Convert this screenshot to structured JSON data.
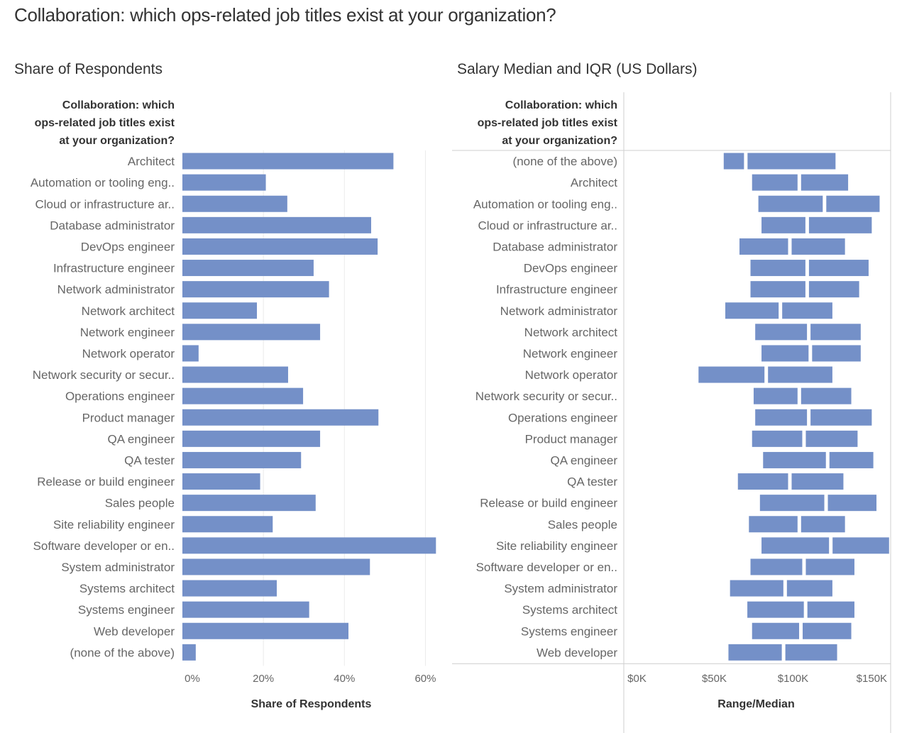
{
  "title": "Collaboration: which ops-related job titles  exist at your organization?",
  "colors": {
    "bar": "#7490c8",
    "grid": "#ebebeb",
    "axis": "#cfcfcf",
    "text": "#333333",
    "label": "#666666"
  },
  "chart_data": [
    {
      "type": "bar",
      "orientation": "horizontal",
      "panel_title": "Share of Respondents",
      "header": [
        "Collaboration: which",
        "ops-related job titles exist",
        "at your organization?"
      ],
      "xlabel": "Share of Respondents",
      "xlim": [
        0,
        65
      ],
      "ticks": [
        0,
        20,
        40,
        60
      ],
      "tick_labels": [
        "0%",
        "20%",
        "40%",
        "60%"
      ],
      "grid": true,
      "categories": [
        "Architect",
        "Automation or tooling eng..",
        "Cloud or infrastructure ar..",
        "Database administrator",
        "DevOps engineer",
        "Infrastructure engineer",
        "Network administrator",
        "Network architect",
        "Network engineer",
        "Network operator",
        "Network security or secur..",
        "Operations engineer",
        "Product manager",
        "QA engineer",
        "QA tester",
        "Release or build engineer",
        "Sales people",
        "Site reliability engineer",
        "Software developer or en..",
        "System administrator",
        "Systems architect",
        "Systems engineer",
        "Web developer",
        "(none of the above)"
      ],
      "values": [
        52.1,
        20.6,
        25.9,
        46.6,
        48.2,
        32.4,
        36.2,
        18.4,
        34.0,
        4.0,
        26.1,
        29.8,
        48.4,
        34.0,
        29.3,
        19.2,
        32.9,
        22.3,
        62.6,
        46.3,
        23.3,
        31.3,
        41.0,
        3.3
      ]
    },
    {
      "type": "range",
      "panel_title": "Salary Median and IQR (US Dollars)",
      "header": [
        "Collaboration: which",
        "ops-related job titles exist",
        "at your organization?"
      ],
      "xlabel": "Range/Median",
      "xlim": [
        -7000,
        162000
      ],
      "ticks": [
        0,
        50000,
        100000,
        150000
      ],
      "tick_labels": [
        "$0K",
        "$50K",
        "$100K",
        "$150K"
      ],
      "grid": false,
      "categories": [
        "(none of the above)",
        "Architect",
        "Automation or tooling eng..",
        "Cloud or infrastructure ar..",
        "Database administrator",
        "DevOps engineer",
        "Infrastructure engineer",
        "Network administrator",
        "Network architect",
        "Network engineer",
        "Network operator",
        "Network security or secur..",
        "Operations engineer",
        "Product manager",
        "QA engineer",
        "QA tester",
        "Release or build engineer",
        "Sales people",
        "Site reliability engineer",
        "Software developer or en..",
        "System administrator",
        "Systems architect",
        "Systems engineer",
        "Web developer"
      ],
      "q1": [
        56000,
        74000,
        78000,
        80000,
        66000,
        73000,
        73000,
        57000,
        76000,
        80000,
        40000,
        75000,
        76000,
        74000,
        81000,
        65000,
        79000,
        72000,
        80000,
        73000,
        60000,
        71000,
        74000,
        59000
      ],
      "median": [
        70000,
        104000,
        120000,
        109000,
        98000,
        109000,
        109000,
        92000,
        110000,
        111000,
        83000,
        104000,
        110000,
        107000,
        122000,
        98000,
        121000,
        104000,
        124000,
        107000,
        95000,
        108000,
        105000,
        94000
      ],
      "q3": [
        127000,
        135000,
        155000,
        150000,
        133000,
        148000,
        142000,
        125000,
        143000,
        143000,
        125000,
        137000,
        150000,
        141000,
        151000,
        132000,
        153000,
        133000,
        161000,
        139000,
        125000,
        139000,
        137000,
        128000
      ]
    }
  ]
}
